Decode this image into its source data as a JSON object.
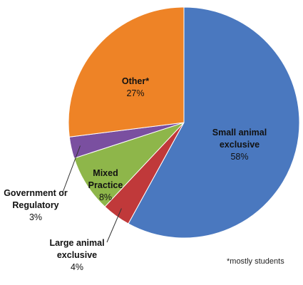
{
  "chart_data": {
    "type": "pie",
    "slices": [
      {
        "name_lines": [
          "Small animal",
          "exclusive"
        ],
        "value": 58,
        "label": "58%",
        "color": "#4a78bf"
      },
      {
        "name_lines": [
          "Large animal",
          "exclusive"
        ],
        "value": 4,
        "label": "4%",
        "color": "#c0393a"
      },
      {
        "name_lines": [
          "Mixed",
          "Practice"
        ],
        "value": 8,
        "label": "8%",
        "color": "#8eb64a"
      },
      {
        "name_lines": [
          "Government or",
          "Regulatory"
        ],
        "value": 3,
        "label": "3%",
        "color": "#7a4fa0"
      },
      {
        "name_lines": [
          "Other*"
        ],
        "value": 27,
        "label": "27%",
        "color": "#ee8326"
      }
    ],
    "footnote": "*mostly students"
  }
}
